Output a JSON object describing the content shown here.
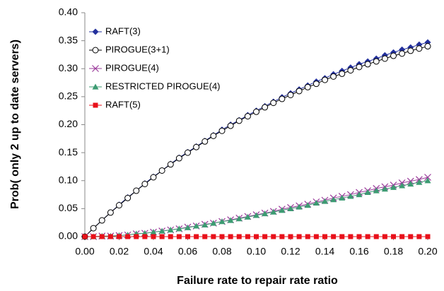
{
  "chart_data": {
    "type": "line",
    "xlabel": "Failure rate to repair rate ratio",
    "ylabel": "Prob( only 2 up to date servers)",
    "x": [
      0,
      0.005,
      0.01,
      0.015,
      0.02,
      0.025,
      0.03,
      0.035,
      0.04,
      0.045,
      0.05,
      0.055,
      0.06,
      0.065,
      0.07,
      0.075,
      0.08,
      0.085,
      0.09,
      0.095,
      0.1,
      0.105,
      0.11,
      0.115,
      0.12,
      0.125,
      0.13,
      0.135,
      0.14,
      0.145,
      0.15,
      0.155,
      0.16,
      0.165,
      0.17,
      0.175,
      0.18,
      0.185,
      0.19,
      0.195,
      0.2
    ],
    "series": [
      {
        "name": "RAFT(3)",
        "color": "#23309c",
        "marker": "diamond",
        "values": [
          0,
          0.015,
          0.029,
          0.043,
          0.057,
          0.07,
          0.082,
          0.095,
          0.107,
          0.118,
          0.13,
          0.141,
          0.151,
          0.161,
          0.171,
          0.181,
          0.191,
          0.2,
          0.208,
          0.217,
          0.225,
          0.233,
          0.241,
          0.249,
          0.256,
          0.263,
          0.27,
          0.277,
          0.283,
          0.29,
          0.296,
          0.302,
          0.308,
          0.313,
          0.318,
          0.324,
          0.329,
          0.334,
          0.338,
          0.343,
          0.347
        ]
      },
      {
        "name": "PIROGUE(3+1)",
        "color": "#000000",
        "marker": "circle",
        "values": [
          0,
          0.015,
          0.029,
          0.043,
          0.056,
          0.069,
          0.082,
          0.094,
          0.106,
          0.118,
          0.129,
          0.14,
          0.15,
          0.16,
          0.17,
          0.18,
          0.189,
          0.198,
          0.207,
          0.215,
          0.223,
          0.231,
          0.239,
          0.246,
          0.253,
          0.26,
          0.267,
          0.273,
          0.28,
          0.286,
          0.291,
          0.297,
          0.303,
          0.308,
          0.313,
          0.318,
          0.323,
          0.327,
          0.332,
          0.336,
          0.34
        ]
      },
      {
        "name": "PIROGUE(4)",
        "color": "#9b3b9b",
        "marker": "x",
        "values": [
          0,
          0,
          0.001,
          0.001,
          0.002,
          0.003,
          0.005,
          0.006,
          0.008,
          0.01,
          0.012,
          0.014,
          0.017,
          0.019,
          0.022,
          0.024,
          0.027,
          0.03,
          0.033,
          0.036,
          0.039,
          0.042,
          0.045,
          0.049,
          0.052,
          0.055,
          0.058,
          0.062,
          0.065,
          0.069,
          0.072,
          0.075,
          0.079,
          0.082,
          0.086,
          0.089,
          0.092,
          0.096,
          0.099,
          0.102,
          0.106
        ]
      },
      {
        "name": "RESTRICTED PIROGUE(4)",
        "color": "#3c9b72",
        "marker": "triangle",
        "values": [
          0,
          0,
          0.001,
          0.001,
          0.002,
          0.003,
          0.005,
          0.006,
          0.008,
          0.01,
          0.012,
          0.014,
          0.016,
          0.019,
          0.021,
          0.024,
          0.027,
          0.029,
          0.032,
          0.035,
          0.038,
          0.041,
          0.044,
          0.047,
          0.05,
          0.053,
          0.056,
          0.06,
          0.063,
          0.066,
          0.069,
          0.072,
          0.075,
          0.079,
          0.082,
          0.085,
          0.088,
          0.091,
          0.094,
          0.097,
          0.1
        ]
      },
      {
        "name": "RAFT(5)",
        "color": "#e8101a",
        "marker": "square",
        "values": [
          0,
          0,
          0,
          0,
          0,
          0,
          0,
          0,
          0,
          0,
          0,
          0,
          0,
          0,
          0,
          0,
          0,
          0,
          0,
          0,
          0,
          0,
          0,
          0,
          0,
          0,
          0,
          0,
          0,
          0,
          0,
          0,
          0,
          0,
          0,
          0,
          0,
          0,
          0,
          0,
          0
        ]
      }
    ],
    "xlim": [
      0,
      0.2
    ],
    "xticks": [
      {
        "value": 0,
        "label": "0.00"
      },
      {
        "value": 0.02,
        "label": "0.02"
      },
      {
        "value": 0.04,
        "label": "0.04"
      },
      {
        "value": 0.06,
        "label": "0.06"
      },
      {
        "value": 0.08,
        "label": "0.08"
      },
      {
        "value": 0.1,
        "label": "0.10"
      },
      {
        "value": 0.12,
        "label": "0.12"
      },
      {
        "value": 0.14,
        "label": "0.14"
      },
      {
        "value": 0.16,
        "label": "0.16"
      },
      {
        "value": 0.18,
        "label": "0.18"
      },
      {
        "value": 0.2,
        "label": "0.20"
      }
    ],
    "ylim": [
      0,
      0.4
    ],
    "yticks": [
      {
        "value": 0,
        "label": "0.00"
      },
      {
        "value": 0.05,
        "label": "0.05"
      },
      {
        "value": 0.1,
        "label": "0.10"
      },
      {
        "value": 0.15,
        "label": "0.15"
      },
      {
        "value": 0.2,
        "label": "0.20"
      },
      {
        "value": 0.25,
        "label": "0.25"
      },
      {
        "value": 0.3,
        "label": "0.30"
      },
      {
        "value": 0.35,
        "label": "0.35"
      },
      {
        "value": 0.4,
        "label": "0.40"
      }
    ],
    "grid": false,
    "legend": "upper-left"
  }
}
